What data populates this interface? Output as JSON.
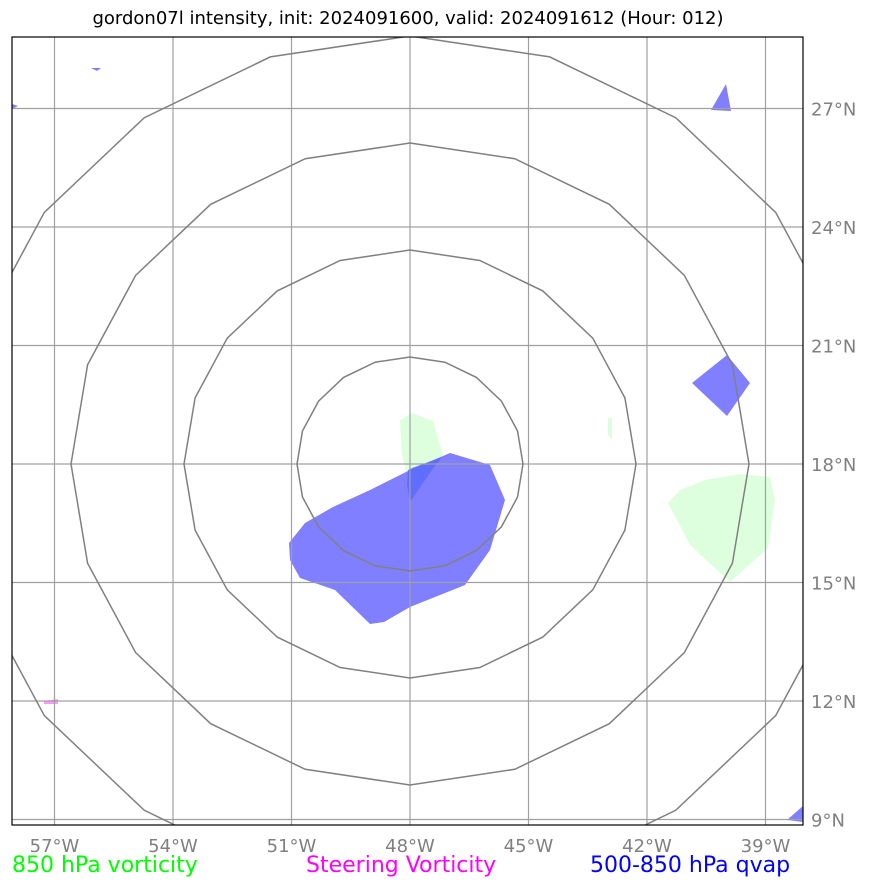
{
  "title": "gordon07l intensity, init: 2024091600, valid: 2024091612 (Hour: 012)",
  "map": {
    "lon_ticks": [
      "57°W",
      "54°W",
      "51°W",
      "48°W",
      "45°W",
      "42°W",
      "39°W"
    ],
    "lat_ticks": [
      "9°N",
      "12°N",
      "15°N",
      "18°N",
      "21°N",
      "24°N",
      "27°N"
    ],
    "lon_range": [
      -58.1,
      -38.1
    ],
    "lat_range": [
      8.9,
      28.8
    ],
    "center": {
      "lon": -48.0,
      "lat": 18.0
    },
    "grid": true,
    "range_rings": 4
  },
  "legend": [
    {
      "label": "850 hPa vorticity",
      "color": "#00ff00"
    },
    {
      "label": "Steering Vorticity",
      "color": "#ff00ff"
    },
    {
      "label": "500-850 hPa qvap",
      "color": "#0000ff"
    }
  ],
  "colors": {
    "vorticity_fill": "#ddffdd",
    "qvap_fill": "#7f7fff",
    "steering_fill": "#ff99ff",
    "grid": "#a0a0a0",
    "rings": "#808080"
  }
}
